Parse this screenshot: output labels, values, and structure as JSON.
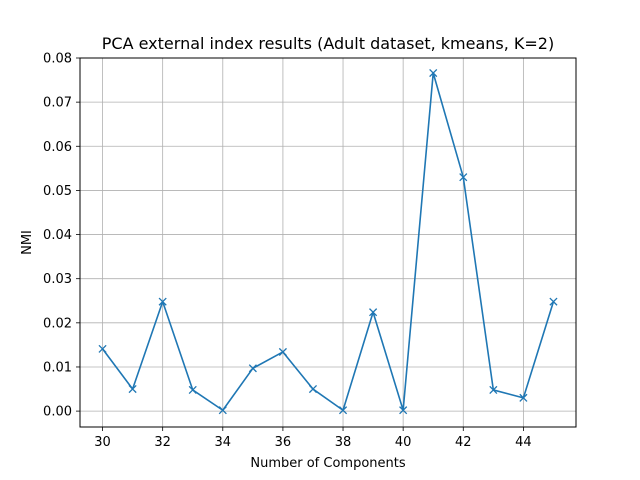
{
  "chart_data": {
    "type": "line",
    "title": "PCA external index results (Adult dataset, kmeans, K=2)",
    "xlabel": "Number of Components",
    "ylabel": "NMI",
    "x": [
      30,
      31,
      32,
      33,
      34,
      35,
      36,
      37,
      38,
      39,
      40,
      41,
      42,
      43,
      44,
      45
    ],
    "series": [
      {
        "values": [
          0.0141,
          0.005,
          0.0248,
          0.0048,
          0.0002,
          0.0097,
          0.0134,
          0.005,
          0.0002,
          0.0224,
          0.0002,
          0.0766,
          0.053,
          0.0048,
          0.003,
          0.0248
        ],
        "color": "#1f77b4",
        "marker": "x"
      }
    ],
    "xlim": [
      29.25,
      45.75
    ],
    "ylim": [
      -0.0036,
      0.08
    ],
    "xticks": [
      "30",
      "32",
      "34",
      "36",
      "38",
      "40",
      "42",
      "44"
    ],
    "xtick_values": [
      30,
      32,
      34,
      36,
      38,
      40,
      42,
      44
    ],
    "yticks": [
      "0.00",
      "0.01",
      "0.02",
      "0.03",
      "0.04",
      "0.05",
      "0.06",
      "0.07",
      "0.08"
    ],
    "ytick_values": [
      0,
      0.01,
      0.02,
      0.03,
      0.04,
      0.05,
      0.06,
      0.07,
      0.08
    ],
    "grid": true,
    "legend": "none"
  }
}
